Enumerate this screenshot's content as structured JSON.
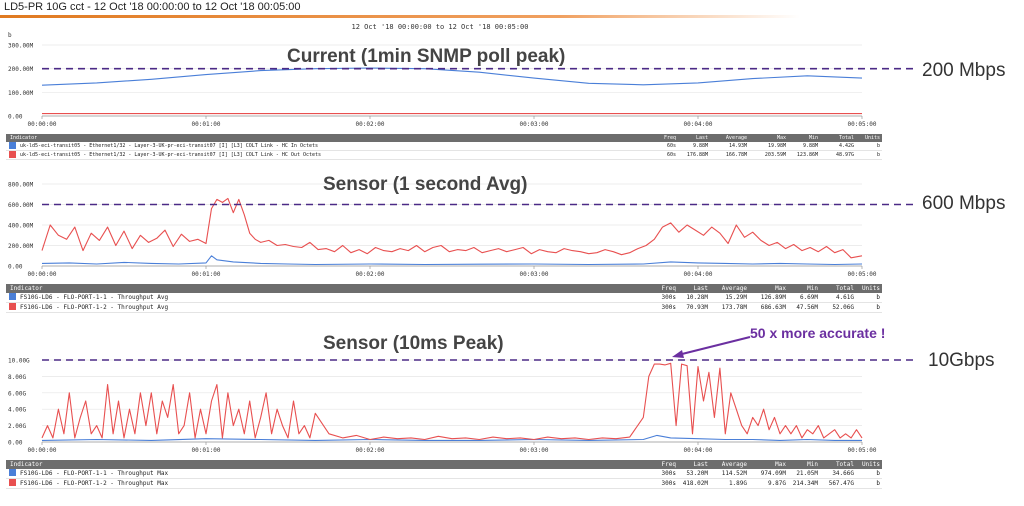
{
  "header": {
    "title": "LD5-PR 10G cct - 12 Oct '18 00:00:00 to 12 Oct '18 00:05:00"
  },
  "subtitle": "12 Oct '18 00:00:00 to 12 Oct '18 00:05:00",
  "ref_labels": [
    "200 Mbps",
    "600 Mbps",
    "10Gbps"
  ],
  "annotation": "50 x more accurate !",
  "colors": {
    "series_in": "#4a7fd8",
    "series_out": "#e85050",
    "ref_line": "#4b2a86",
    "accent": "#e07a20",
    "annotation": "#6b2fa0"
  },
  "chart_data": [
    {
      "type": "line",
      "title": "Current (1min SNMP poll peak)",
      "unit_label": "b",
      "ytick_labels": [
        "0.00",
        "100.00M",
        "200.00M",
        "300.00M"
      ],
      "yticks": [
        0,
        100,
        200,
        300
      ],
      "ylim": [
        0,
        300
      ],
      "xtick_labels": [
        "00:00:00",
        "00:01:00",
        "00:02:00",
        "00:03:00",
        "00:04:00",
        "00:05:00"
      ],
      "xlim": [
        0,
        300
      ],
      "reference_line": 200,
      "series": [
        {
          "x": [
            0,
            20,
            40,
            60,
            80,
            100,
            120,
            140,
            160,
            180,
            200,
            220,
            240,
            260,
            280,
            300
          ],
          "values": [
            130,
            140,
            155,
            175,
            192,
            200,
            203,
            200,
            185,
            160,
            138,
            132,
            140,
            158,
            170,
            160
          ]
        },
        {
          "x": [
            0,
            60,
            120,
            180,
            240,
            300
          ],
          "values": [
            10,
            10,
            10,
            10,
            10,
            10
          ]
        }
      ],
      "table": {
        "headers": [
          "Indicator",
          "Freq",
          "Last",
          "Average",
          "Max",
          "Min",
          "Total",
          "Units"
        ],
        "rows": [
          [
            "uk-ld5-eci-transit05 - Ethernet1/32 - Layer-3-UK-pr-eci-transit07 [I] [L3] COLT Link - HC In Octets",
            "60s",
            "9.88M",
            "14.93M",
            "19.98M",
            "9.88M",
            "4.42G",
            "b"
          ],
          [
            "uk-ld5-eci-transit05 - Ethernet1/32 - Layer-3-UK-pr-eci-transit07 [I] [L3] COLT Link - HC Out Octets",
            "60s",
            "176.88M",
            "166.78M",
            "203.59M",
            "123.86M",
            "48.97G",
            "b"
          ]
        ]
      }
    },
    {
      "type": "line",
      "title": "Sensor (1 second Avg)",
      "ytick_labels": [
        "0.00",
        "200.00M",
        "400.00M",
        "600.00M",
        "800.00M"
      ],
      "yticks": [
        0,
        200,
        400,
        600,
        800
      ],
      "ylim": [
        0,
        800
      ],
      "xtick_labels": [
        "00:00:00",
        "00:01:00",
        "00:02:00",
        "00:03:00",
        "00:04:00",
        "00:05:00"
      ],
      "xlim": [
        0,
        300
      ],
      "reference_line": 600,
      "series": [
        {
          "x": [
            0,
            10,
            20,
            30,
            40,
            50,
            60,
            62,
            64,
            70,
            80,
            90,
            100,
            120,
            140,
            160,
            180,
            200,
            220,
            230,
            240,
            250,
            260,
            270,
            280,
            290,
            300
          ],
          "values": [
            25,
            30,
            20,
            35,
            25,
            20,
            30,
            100,
            60,
            40,
            25,
            20,
            15,
            20,
            15,
            18,
            20,
            15,
            20,
            40,
            30,
            25,
            20,
            25,
            20,
            15,
            20
          ]
        },
        {
          "x": [
            0,
            3,
            6,
            9,
            12,
            15,
            18,
            21,
            24,
            27,
            30,
            33,
            36,
            39,
            42,
            45,
            48,
            51,
            54,
            57,
            60,
            62,
            64,
            66,
            68,
            70,
            72,
            74,
            76,
            78,
            80,
            83,
            86,
            89,
            92,
            95,
            98,
            101,
            104,
            107,
            110,
            113,
            116,
            119,
            122,
            125,
            128,
            131,
            134,
            137,
            140,
            143,
            146,
            149,
            152,
            155,
            158,
            161,
            164,
            167,
            170,
            173,
            176,
            179,
            182,
            185,
            188,
            191,
            194,
            197,
            200,
            203,
            206,
            209,
            212,
            215,
            218,
            221,
            224,
            227,
            230,
            233,
            236,
            239,
            242,
            245,
            248,
            251,
            254,
            257,
            260,
            263,
            266,
            269,
            272,
            275,
            278,
            281,
            284,
            287,
            290,
            293,
            296,
            300
          ],
          "values": [
            150,
            400,
            300,
            260,
            380,
            150,
            320,
            250,
            380,
            200,
            340,
            170,
            300,
            230,
            270,
            350,
            190,
            310,
            240,
            260,
            220,
            560,
            650,
            620,
            660,
            520,
            650,
            500,
            320,
            260,
            230,
            250,
            200,
            210,
            190,
            180,
            230,
            160,
            170,
            140,
            200,
            130,
            160,
            120,
            180,
            150,
            140,
            170,
            150,
            200,
            140,
            180,
            200,
            140,
            160,
            150,
            180,
            130,
            150,
            170,
            140,
            160,
            180,
            120,
            160,
            140,
            130,
            170,
            150,
            140,
            120,
            130,
            160,
            140,
            110,
            130,
            170,
            200,
            260,
            380,
            420,
            330,
            400,
            350,
            300,
            380,
            320,
            220,
            400,
            280,
            330,
            250,
            200,
            230,
            170,
            210,
            150,
            180,
            140,
            190,
            130,
            160,
            80,
            100
          ]
        }
      ],
      "table": {
        "headers": [
          "Indicator",
          "Freq",
          "Last",
          "Average",
          "Max",
          "Min",
          "Total",
          "Units"
        ],
        "rows": [
          [
            "FS10G-LD6 - FLO-PORT-1-1 - Throughput Avg",
            "300s",
            "10.28M",
            "15.29M",
            "126.89M",
            "6.69M",
            "4.61G",
            "b"
          ],
          [
            "FS10G-LD6 - FLO-PORT-1-2 - Throughput Avg",
            "300s",
            "70.93M",
            "173.78M",
            "686.63M",
            "47.56M",
            "52.06G",
            "b"
          ]
        ]
      }
    },
    {
      "type": "line",
      "title": "Sensor  (10ms Peak)",
      "ytick_labels": [
        "0.00",
        "2.00G",
        "4.00G",
        "6.00G",
        "8.00G",
        "10.00G"
      ],
      "yticks": [
        0,
        2,
        4,
        6,
        8,
        10
      ],
      "ylim": [
        0,
        10
      ],
      "xtick_labels": [
        "00:00:00",
        "00:01:00",
        "00:02:00",
        "00:03:00",
        "00:04:00",
        "00:05:00"
      ],
      "xlim": [
        0,
        300
      ],
      "reference_line": 10,
      "series": [
        {
          "x": [
            0,
            20,
            40,
            60,
            80,
            100,
            120,
            140,
            160,
            180,
            200,
            220,
            225,
            230,
            240,
            250,
            260,
            270,
            280,
            290,
            300
          ],
          "values": [
            0.2,
            0.3,
            0.2,
            0.4,
            0.3,
            0.2,
            0.3,
            0.2,
            0.2,
            0.3,
            0.2,
            0.3,
            0.8,
            0.5,
            0.4,
            0.3,
            0.3,
            0.2,
            0.3,
            0.2,
            0.2
          ]
        },
        {
          "x": [
            0,
            2,
            4,
            6,
            8,
            10,
            12,
            14,
            16,
            18,
            20,
            22,
            24,
            26,
            28,
            30,
            32,
            34,
            36,
            38,
            40,
            42,
            44,
            46,
            48,
            50,
            52,
            54,
            56,
            58,
            60,
            62,
            64,
            66,
            68,
            70,
            72,
            74,
            76,
            78,
            80,
            82,
            84,
            86,
            88,
            90,
            92,
            94,
            96,
            98,
            100,
            105,
            110,
            115,
            120,
            125,
            130,
            135,
            140,
            145,
            150,
            155,
            160,
            165,
            170,
            175,
            180,
            185,
            190,
            195,
            200,
            205,
            210,
            215,
            220,
            222,
            224,
            226,
            228,
            230,
            232,
            234,
            236,
            238,
            240,
            242,
            244,
            246,
            248,
            250,
            252,
            254,
            256,
            258,
            260,
            262,
            264,
            266,
            268,
            270,
            272,
            274,
            276,
            278,
            280,
            282,
            284,
            286,
            288,
            290,
            292,
            294,
            296,
            298,
            300
          ],
          "values": [
            0.5,
            2,
            0.5,
            4,
            1,
            6,
            0.5,
            3,
            5,
            1,
            2,
            0.5,
            7,
            1,
            5,
            0.5,
            4,
            1,
            6,
            2,
            6,
            1,
            5,
            3,
            7,
            1,
            2,
            6,
            0.5,
            4,
            1,
            5,
            7,
            0.5,
            6,
            2,
            4,
            1,
            5,
            0.5,
            3,
            6,
            1,
            4,
            2,
            0.5,
            5,
            1,
            2,
            0.5,
            3.5,
            1,
            0.5,
            0.8,
            0.3,
            0.6,
            0.4,
            0.5,
            0.3,
            0.7,
            0.4,
            0.5,
            0.3,
            0.6,
            0.4,
            0.5,
            0.3,
            0.6,
            0.4,
            0.5,
            0.3,
            0.5,
            0.4,
            0.6,
            3,
            8,
            9.5,
            9.5,
            9.4,
            9.6,
            2,
            9.5,
            9.3,
            1,
            9.2,
            5,
            8.5,
            3,
            9,
            1,
            6,
            4,
            2,
            1,
            3,
            2,
            4,
            1.5,
            3,
            1,
            2,
            1,
            2,
            0.5,
            1.5,
            1,
            2,
            0.5,
            1,
            1.5,
            0.5,
            1,
            0.5,
            1.5,
            0.5
          ]
        }
      ],
      "table": {
        "headers": [
          "Indicator",
          "Freq",
          "Last",
          "Average",
          "Max",
          "Min",
          "Total",
          "Units"
        ],
        "rows": [
          [
            "FS10G-LD6 - FLO-PORT-1-1 - Throughput Max",
            "300s",
            "53.20M",
            "114.52M",
            "974.09M",
            "21.05M",
            "34.66G",
            "b"
          ],
          [
            "FS10G-LD6 - FLO-PORT-1-2 - Throughput Max",
            "300s",
            "418.02M",
            "1.89G",
            "9.87G",
            "214.34M",
            "567.47G",
            "b"
          ]
        ]
      }
    }
  ]
}
